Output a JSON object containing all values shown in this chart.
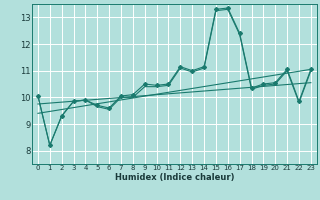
{
  "xlabel": "Humidex (Indice chaleur)",
  "background_color": "#b2e0dc",
  "grid_color": "#ffffff",
  "line_color": "#1a7a6e",
  "xlim": [
    -0.5,
    23.5
  ],
  "ylim": [
    7.5,
    13.5
  ],
  "xticks": [
    0,
    1,
    2,
    3,
    4,
    5,
    6,
    7,
    8,
    9,
    10,
    11,
    12,
    13,
    14,
    15,
    16,
    17,
    18,
    19,
    20,
    21,
    22,
    23
  ],
  "yticks": [
    8,
    9,
    10,
    11,
    12,
    13
  ],
  "series_with_markers_x": [
    0,
    1,
    2,
    3,
    4,
    5,
    6,
    7,
    8,
    9,
    10,
    11,
    12,
    13,
    14,
    15,
    16,
    17,
    18,
    19,
    20,
    21,
    22,
    23
  ],
  "series_with_markers_y": [
    10.05,
    8.2,
    9.3,
    9.85,
    9.9,
    9.7,
    9.6,
    10.05,
    10.1,
    10.5,
    10.45,
    10.5,
    11.15,
    11.0,
    11.15,
    13.3,
    13.35,
    12.4,
    10.35,
    10.5,
    10.55,
    11.05,
    9.85,
    11.05
  ],
  "series_smooth_x": [
    0,
    1,
    2,
    3,
    4,
    5,
    6,
    7,
    8,
    9,
    10,
    11,
    12,
    13,
    14,
    15,
    16,
    17,
    18,
    19,
    20,
    21,
    22,
    23
  ],
  "series_smooth_y": [
    10.05,
    8.2,
    9.3,
    9.85,
    9.9,
    9.65,
    9.55,
    10.0,
    10.0,
    10.4,
    10.4,
    10.45,
    11.1,
    10.95,
    11.1,
    13.25,
    13.3,
    12.35,
    10.3,
    10.45,
    10.5,
    11.0,
    9.8,
    11.0
  ],
  "trend1_x": [
    0,
    23
  ],
  "trend1_y": [
    9.75,
    10.55
  ],
  "trend2_x": [
    0,
    23
  ],
  "trend2_y": [
    9.4,
    11.05
  ]
}
